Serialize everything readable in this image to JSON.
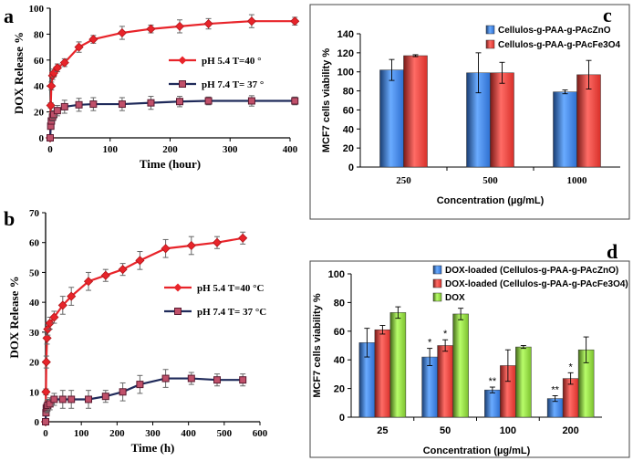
{
  "chart_data": [
    {
      "panel": "a",
      "type": "line",
      "xlabel": "Time (hour)",
      "ylabel": "DOX Release %",
      "xlim": [
        0,
        400
      ],
      "ylim": [
        0,
        100
      ],
      "xticks": [
        0,
        100,
        200,
        300,
        400
      ],
      "yticks": [
        0,
        20,
        40,
        60,
        80,
        100
      ],
      "series": [
        {
          "name": "pH 5.4   T=40 °",
          "color": "#e8242a",
          "marker": "diamond",
          "x": [
            0,
            1,
            2,
            4,
            6,
            12,
            24,
            48,
            72,
            120,
            168,
            216,
            264,
            336,
            408
          ],
          "y": [
            0,
            25,
            40,
            48,
            50,
            54,
            58,
            70,
            76,
            81,
            84,
            86,
            88,
            90,
            90
          ],
          "err": [
            0,
            2,
            3,
            3,
            3,
            3,
            3,
            4,
            3,
            5,
            3,
            5,
            4,
            5,
            3
          ]
        },
        {
          "name": "pH 7.4   T= 37 °",
          "color": "#1f2a5a",
          "marker": "square",
          "x": [
            0,
            1,
            2,
            4,
            6,
            12,
            24,
            48,
            72,
            120,
            168,
            216,
            264,
            336,
            408
          ],
          "y": [
            0,
            9,
            13,
            16,
            18,
            21,
            24,
            25.5,
            26,
            26,
            27,
            28,
            28.5,
            28.5,
            28.5
          ],
          "err": [
            0,
            2,
            2,
            3,
            3,
            4,
            5,
            5,
            5,
            5,
            5,
            4,
            3,
            4,
            3
          ]
        }
      ]
    },
    {
      "panel": "b",
      "type": "line",
      "xlabel": "Time (h)",
      "ylabel": "DOX Release %",
      "xlim": [
        0,
        600
      ],
      "ylim": [
        0,
        70
      ],
      "xticks": [
        0,
        100,
        200,
        300,
        400,
        500,
        600
      ],
      "yticks": [
        0,
        10,
        20,
        30,
        40,
        50,
        60,
        70
      ],
      "series": [
        {
          "name": "pH 5.4   T=40 °C",
          "color": "#e8242a",
          "marker": "diamond",
          "x": [
            0,
            1,
            2,
            4,
            6,
            12,
            24,
            48,
            72,
            120,
            168,
            216,
            264,
            336,
            408,
            480,
            552
          ],
          "y": [
            0,
            10,
            20,
            28,
            31,
            33,
            35,
            39,
            42,
            47,
            49,
            51,
            54,
            58,
            59,
            60,
            61.5
          ],
          "err": [
            0,
            1,
            2,
            2,
            2,
            2,
            2,
            3,
            3,
            3,
            2,
            2,
            3,
            3,
            3,
            2,
            2
          ]
        },
        {
          "name": "pH 7.4   T= 37 °C",
          "color": "#1f2a5a",
          "marker": "square",
          "x": [
            0,
            1,
            2,
            4,
            6,
            12,
            24,
            48,
            72,
            120,
            168,
            216,
            264,
            336,
            408,
            480,
            552
          ],
          "y": [
            0,
            3,
            4.5,
            5,
            5.5,
            6,
            7.5,
            7.5,
            7.5,
            7.5,
            8.5,
            10,
            12.5,
            14.5,
            14.5,
            14,
            14
          ],
          "err": [
            0,
            1,
            1,
            2,
            2,
            2,
            2,
            3,
            3,
            3,
            2,
            3,
            3,
            3,
            2,
            2,
            2
          ]
        }
      ]
    },
    {
      "panel": "c",
      "type": "bar",
      "xlabel": "Concentration (µg/mL)",
      "ylabel": "MCF7 cells viability %",
      "categories": [
        "250",
        "500",
        "1000"
      ],
      "ylim": [
        0,
        140
      ],
      "yticks": [
        0,
        20,
        40,
        60,
        80,
        100,
        120,
        140
      ],
      "series": [
        {
          "name": "Cellulos-g-PAA-g-PAcZnO",
          "color": "#2e6fd0",
          "values": [
            102,
            99,
            79
          ],
          "err": [
            11,
            21,
            2
          ]
        },
        {
          "name": "Cellulos-g-PAA-g-PAcFe3O4",
          "color": "#d8302a",
          "values": [
            117,
            99,
            97
          ],
          "err": [
            1,
            11,
            15
          ]
        }
      ]
    },
    {
      "panel": "d",
      "type": "bar",
      "xlabel": "Concentration (µg/mL)",
      "ylabel": "MCF7 cells viability %",
      "categories": [
        "25",
        "50",
        "100",
        "200"
      ],
      "ylim": [
        0,
        100
      ],
      "yticks": [
        0,
        20,
        40,
        60,
        80,
        100
      ],
      "series": [
        {
          "name": "DOX-loaded (Cellulos-g-PAA-g-PAcZnO)",
          "color": "#2e6fd0",
          "values": [
            52,
            42,
            19,
            13
          ],
          "err": [
            10,
            6,
            2,
            2
          ],
          "stars": [
            "",
            "*",
            "**",
            "**"
          ]
        },
        {
          "name": "DOX-loaded (Cellulos-g-PAA-g-PAcFe3O4)",
          "color": "#d8302a",
          "values": [
            61,
            50,
            36,
            27
          ],
          "err": [
            3,
            4,
            11,
            4
          ],
          "stars": [
            "",
            "*",
            "",
            "*"
          ]
        },
        {
          "name": "DOX",
          "color": "#7cc12e",
          "values": [
            73,
            72,
            49,
            47
          ],
          "err": [
            4,
            4,
            1,
            9
          ],
          "stars": [
            "",
            "",
            "",
            ""
          ]
        }
      ]
    }
  ]
}
